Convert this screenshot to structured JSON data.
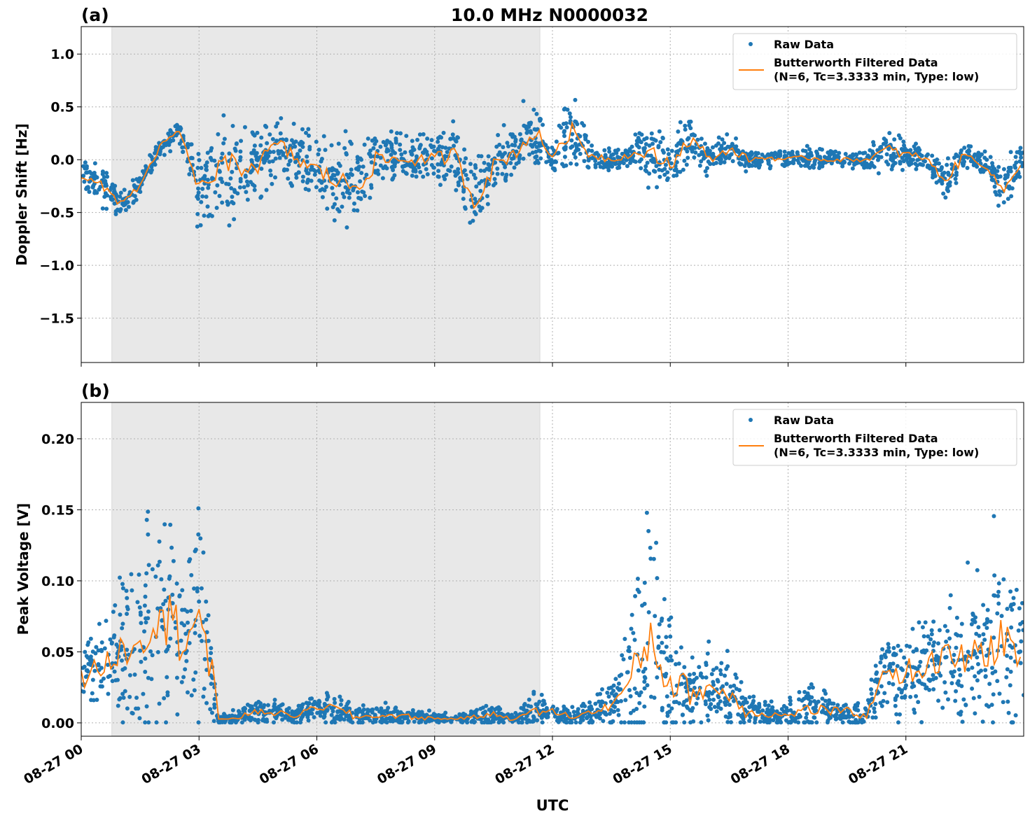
{
  "chart_data": [
    {
      "type": "scatter",
      "panel_label": "(a)",
      "title": "10.0 MHz N0000032",
      "xlabel": "",
      "ylabel": "Doppler Shift [Hz]",
      "x_unit": "hours UTC since 08-27 00",
      "xlim": [
        0,
        24
      ],
      "ylim": [
        -1.92,
        1.26
      ],
      "yticks": [
        -1.5,
        -1.0,
        -0.5,
        0.0,
        0.5,
        1.0
      ],
      "ytick_labels": [
        "−1.5",
        "−1.0",
        "−0.5",
        "0.0",
        "0.5",
        "1.0"
      ],
      "grid": true,
      "legend_position": "top-right",
      "night_shading_hours": [
        0.78,
        11.68
      ],
      "series": [
        {
          "name": "Raw Data",
          "color": "#1f77b4",
          "style": "points"
        },
        {
          "name": "Butterworth Filtered Data\n(N=6, Tc=3.3333 min, Type: low)",
          "color": "#ff7f0e",
          "style": "line"
        }
      ],
      "x": [
        0,
        0.5,
        1,
        1.5,
        2,
        2.5,
        3,
        3.5,
        4,
        4.5,
        5,
        5.5,
        6,
        6.5,
        7,
        7.5,
        8,
        8.5,
        9,
        9.5,
        10,
        10.5,
        11,
        11.5,
        12,
        12.5,
        13,
        13.5,
        14,
        14.5,
        15,
        15.5,
        16,
        16.5,
        17,
        17.5,
        18,
        18.5,
        19,
        19.5,
        20,
        20.5,
        21,
        21.5,
        22,
        22.5,
        23,
        23.5,
        24
      ],
      "filtered": [
        -0.15,
        -0.25,
        -0.4,
        -0.25,
        0.12,
        0.28,
        -0.3,
        -0.1,
        -0.05,
        -0.05,
        0.15,
        0.0,
        -0.1,
        -0.2,
        -0.25,
        0.0,
        0.0,
        0.0,
        0.0,
        0.05,
        -0.4,
        -0.05,
        0.05,
        0.25,
        0.05,
        0.25,
        0.05,
        0.0,
        0.05,
        0.05,
        -0.05,
        0.2,
        0.0,
        0.1,
        0.0,
        0.02,
        0.0,
        0.02,
        0.0,
        0.0,
        0.0,
        0.1,
        0.05,
        0.02,
        -0.2,
        0.05,
        -0.05,
        -0.3,
        0.05
      ],
      "raw_spread": [
        0.15,
        0.2,
        0.15,
        0.1,
        0.1,
        0.12,
        0.4,
        0.5,
        0.45,
        0.35,
        0.3,
        0.3,
        0.35,
        0.4,
        0.45,
        0.3,
        0.25,
        0.25,
        0.3,
        0.35,
        0.4,
        0.25,
        0.3,
        0.4,
        0.15,
        0.4,
        0.15,
        0.12,
        0.15,
        0.35,
        0.25,
        0.3,
        0.15,
        0.15,
        0.1,
        0.1,
        0.1,
        0.1,
        0.08,
        0.08,
        0.1,
        0.2,
        0.15,
        0.12,
        0.2,
        0.12,
        0.12,
        0.25,
        0.15
      ]
    },
    {
      "type": "scatter",
      "panel_label": "(b)",
      "title": "",
      "xlabel": "UTC",
      "ylabel": "Peak Voltage [V]",
      "xlim": [
        0,
        24
      ],
      "ylim": [
        -0.0094,
        0.2256
      ],
      "yticks": [
        0.0,
        0.05,
        0.1,
        0.15,
        0.2
      ],
      "ytick_labels": [
        "0.00",
        "0.05",
        "0.10",
        "0.15",
        "0.20"
      ],
      "xtick_labels": [
        "08-27 00",
        "08-27 03",
        "08-27 06",
        "08-27 09",
        "08-27 12",
        "08-27 15",
        "08-27 18",
        "08-27 21"
      ],
      "xticks_hours": [
        0,
        3,
        6,
        9,
        12,
        15,
        18,
        21
      ],
      "grid": true,
      "legend_position": "top-right",
      "night_shading_hours": [
        0.78,
        11.68
      ],
      "series": [
        {
          "name": "Raw Data",
          "color": "#1f77b4",
          "style": "points"
        },
        {
          "name": "Butterworth Filtered Data\n(N=6, Tc=3.3333 min, Type: low)",
          "color": "#ff7f0e",
          "style": "line"
        }
      ],
      "x": [
        0,
        0.5,
        1,
        1.5,
        2,
        2.5,
        3,
        3.5,
        4,
        4.5,
        5,
        5.5,
        6,
        6.5,
        7,
        7.5,
        8,
        8.5,
        9,
        9.5,
        10,
        10.5,
        11,
        11.5,
        12,
        12.5,
        13,
        13.5,
        14,
        14.5,
        15,
        15.5,
        16,
        16.5,
        17,
        17.5,
        18,
        18.5,
        19,
        19.5,
        20,
        20.5,
        21,
        21.5,
        22,
        22.5,
        23,
        23.5,
        24
      ],
      "filtered": [
        0.03,
        0.04,
        0.05,
        0.06,
        0.08,
        0.06,
        0.08,
        0.002,
        0.004,
        0.008,
        0.007,
        0.005,
        0.012,
        0.01,
        0.004,
        0.005,
        0.005,
        0.004,
        0.003,
        0.003,
        0.004,
        0.006,
        0.003,
        0.008,
        0.008,
        0.004,
        0.008,
        0.012,
        0.03,
        0.06,
        0.03,
        0.02,
        0.025,
        0.02,
        0.008,
        0.006,
        0.005,
        0.01,
        0.008,
        0.008,
        0.005,
        0.04,
        0.035,
        0.04,
        0.045,
        0.045,
        0.05,
        0.06,
        0.04
      ],
      "raw_spread": [
        0.03,
        0.04,
        0.05,
        0.07,
        0.1,
        0.07,
        0.1,
        0.003,
        0.008,
        0.01,
        0.008,
        0.007,
        0.012,
        0.012,
        0.007,
        0.008,
        0.008,
        0.006,
        0.004,
        0.004,
        0.006,
        0.008,
        0.004,
        0.012,
        0.01,
        0.006,
        0.012,
        0.015,
        0.06,
        0.1,
        0.05,
        0.03,
        0.03,
        0.025,
        0.012,
        0.01,
        0.01,
        0.02,
        0.012,
        0.012,
        0.01,
        0.04,
        0.04,
        0.04,
        0.05,
        0.05,
        0.06,
        0.08,
        0.05
      ]
    }
  ]
}
